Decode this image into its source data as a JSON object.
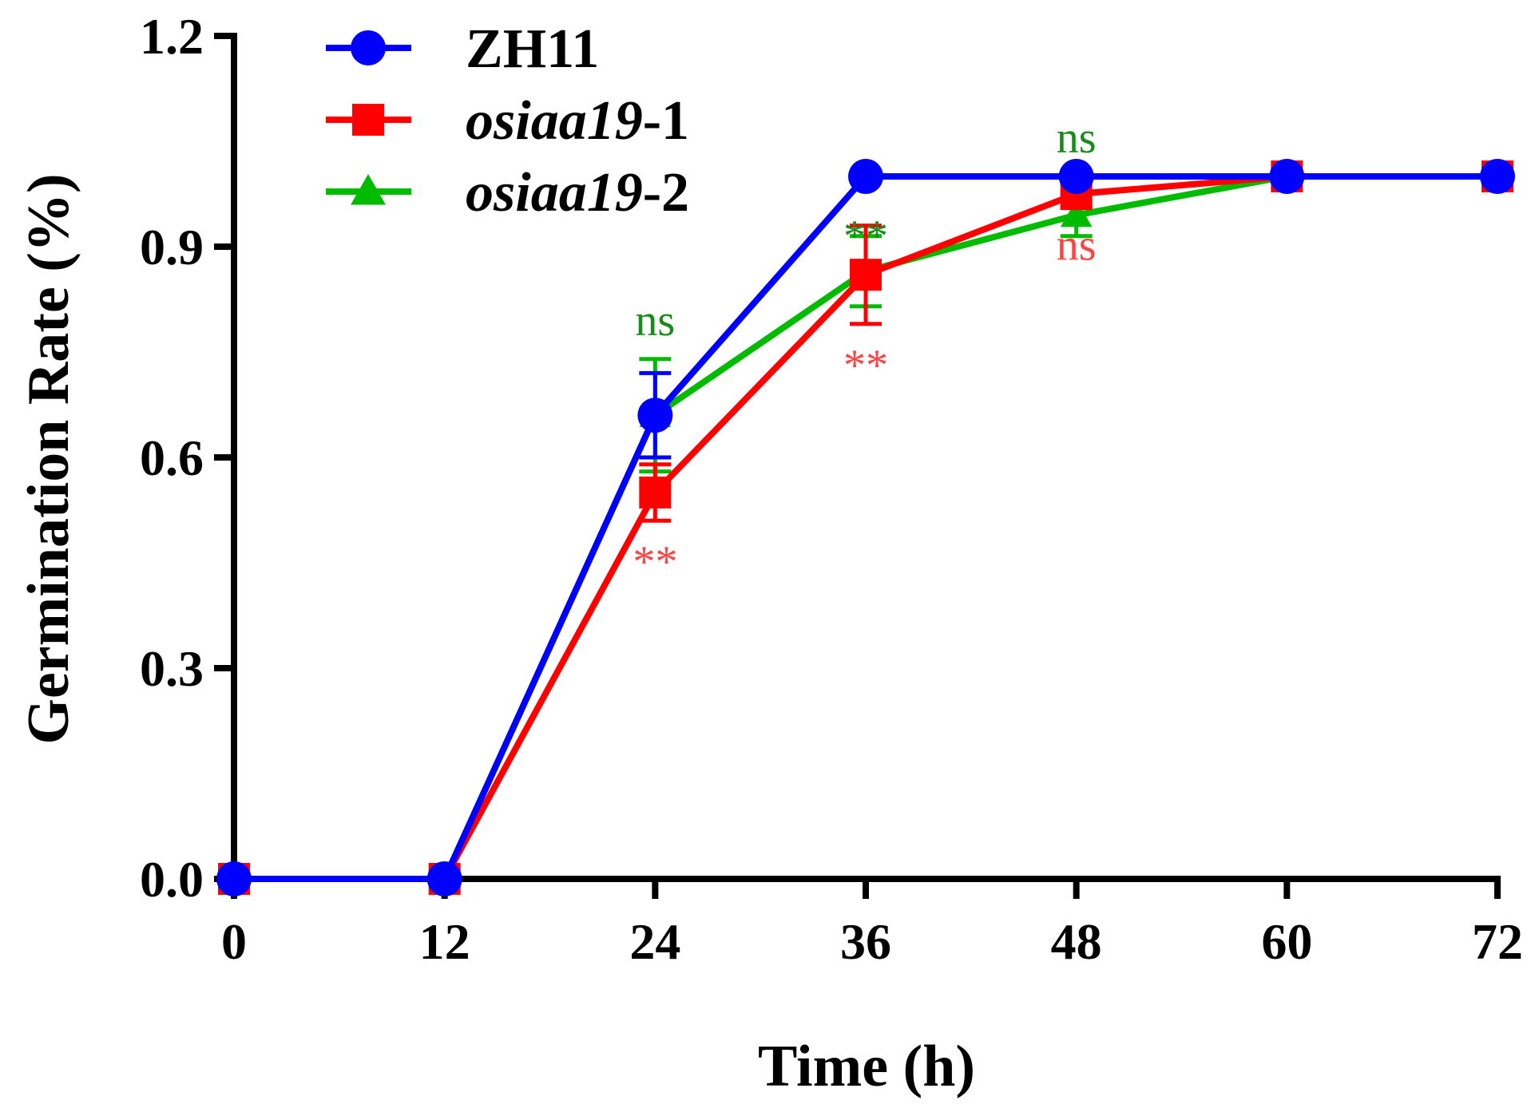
{
  "chart_data": {
    "type": "line",
    "xlabel": "Time (h)",
    "ylabel": "Germination Rate (%)",
    "x": [
      0,
      12,
      24,
      36,
      48,
      60,
      72
    ],
    "x_ticks": [
      "0",
      "12",
      "24",
      "36",
      "48",
      "60",
      "72"
    ],
    "y_ticks": [
      "0.0",
      "0.3",
      "0.6",
      "0.9",
      "1.2"
    ],
    "xlim": [
      0,
      72
    ],
    "ylim": [
      0,
      1.2
    ],
    "grid": false,
    "legend_position": "top-left",
    "series": [
      {
        "name": "ZH11",
        "name_italic": "",
        "name_suffix": "ZH11",
        "color": "#0000ff",
        "marker": "circle",
        "values": [
          0,
          0,
          0.66,
          1.0,
          1.0,
          1.0,
          1.0
        ],
        "errors": [
          0,
          0,
          0.06,
          0,
          0,
          0,
          0
        ]
      },
      {
        "name": "osiaa19-1",
        "name_italic": "osiaa19",
        "name_suffix": "-1",
        "color": "#ff0000",
        "marker": "square",
        "values": [
          0,
          0,
          0.55,
          0.86,
          0.975,
          1.0,
          1.0
        ],
        "errors": [
          0,
          0,
          0.04,
          0.07,
          0.02,
          0,
          0
        ]
      },
      {
        "name": "osiaa19-2",
        "name_italic": "osiaa19",
        "name_suffix": "-2",
        "color": "#00bb00",
        "marker": "triangle",
        "values": [
          0,
          0,
          0.66,
          0.865,
          0.945,
          1.0,
          1.0
        ],
        "errors": [
          0,
          0,
          0.08,
          0.05,
          0.03,
          0,
          0
        ]
      }
    ],
    "annotations": [
      {
        "text": "ns",
        "series": "osiaa19-2",
        "x": 24,
        "position": "above",
        "color": "#1a8a1a"
      },
      {
        "text": "**",
        "series": "osiaa19-1",
        "x": 24,
        "position": "below",
        "color": "#ff4444"
      },
      {
        "text": "**",
        "series": "osiaa19-2",
        "x": 36,
        "position": "above",
        "color": "#1a8a1a"
      },
      {
        "text": "**",
        "series": "osiaa19-1",
        "x": 36,
        "position": "below",
        "color": "#ff4444"
      },
      {
        "text": "ns",
        "series": "osiaa19-2",
        "x": 48,
        "position": "above",
        "color": "#1a8a1a"
      },
      {
        "text": "ns",
        "series": "osiaa19-1",
        "x": 48,
        "position": "below",
        "color": "#ff4444"
      }
    ]
  }
}
